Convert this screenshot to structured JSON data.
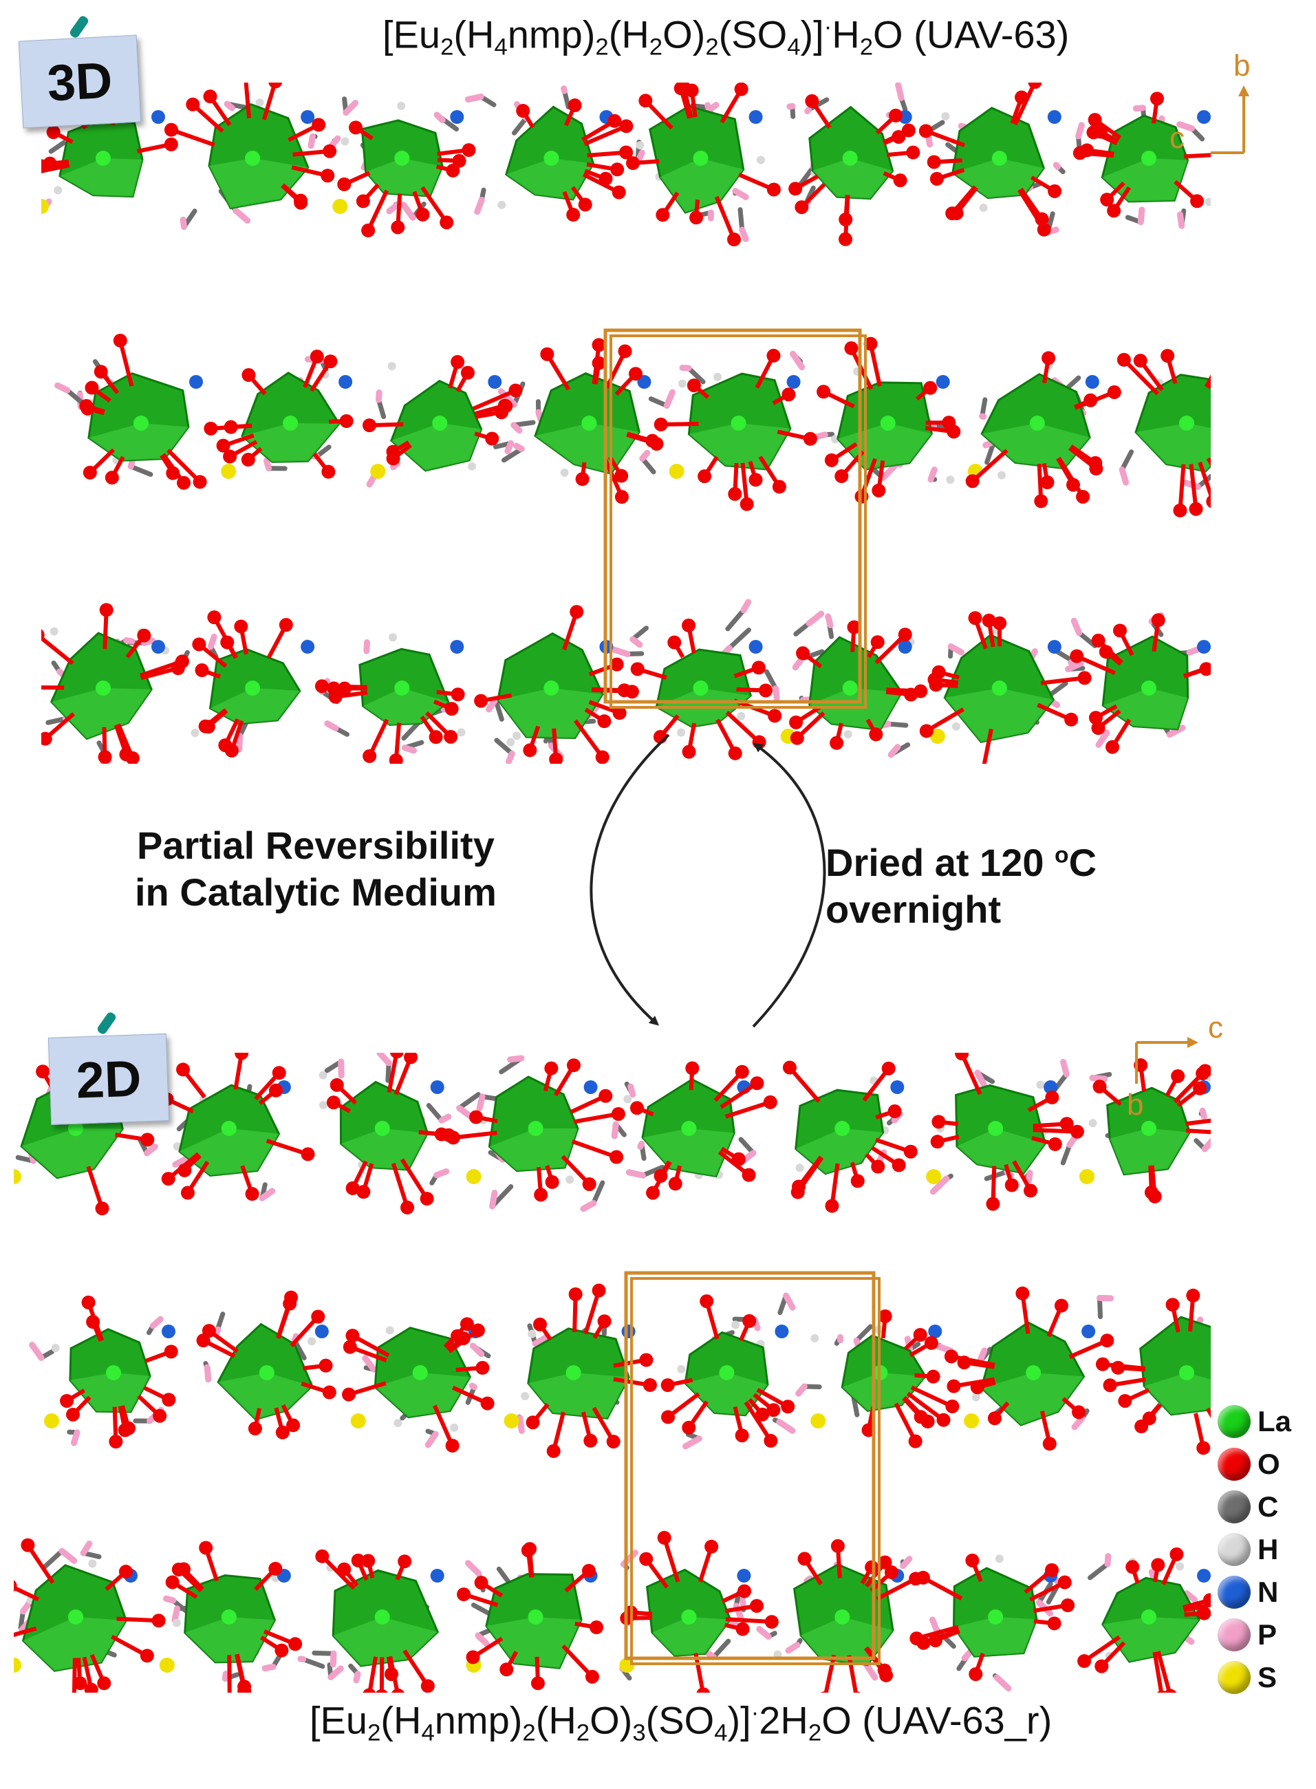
{
  "top": {
    "formula": {
      "a": "[Eu",
      "s1": "2",
      "b": "(H",
      "s2": "4",
      "c": "nmp)",
      "s3": "2",
      "d": "(H",
      "s4": "2",
      "e": "O)",
      "s5": "2",
      "f": "(SO",
      "s6": "4",
      "g": ")]",
      "dot": "·",
      "h": "H",
      "s7": "2",
      "i": "O (UAV-63)"
    },
    "tag": "3D",
    "axes": {
      "horizontal": "c",
      "vertical": "b"
    }
  },
  "bottom": {
    "formula": {
      "a": "[Eu",
      "s1": "2",
      "b": "(H",
      "s2": "4",
      "c": "nmp)",
      "s3": "2",
      "d": "(H",
      "s4": "2",
      "e": "O)",
      "s5": "3",
      "f": "(SO",
      "s6": "4",
      "g": ")]",
      "dot": "·",
      "h": "2H",
      "s7": "2",
      "i": "O (UAV-63_r)"
    },
    "tag": "2D",
    "axes": {
      "horizontal": "c",
      "vertical": "b"
    }
  },
  "transitions": {
    "left_line1": "Partial Reversibility",
    "left_line2": "in Catalytic Medium",
    "right_line1": "Dried at 120 ",
    "right_deg": "o",
    "right_line1_end": "C",
    "right_line2": "overnight"
  },
  "legend": [
    {
      "label": "La",
      "color": "#18d018"
    },
    {
      "label": "O",
      "color": "#ee0000"
    },
    {
      "label": "C",
      "color": "#6e6e6e"
    },
    {
      "label": "H",
      "color": "#d8d8d8"
    },
    {
      "label": "N",
      "color": "#1f5fd6"
    },
    {
      "label": "P",
      "color": "#f2a0c8"
    },
    {
      "label": "S",
      "color": "#f0e000"
    }
  ],
  "colors": {
    "polyhedron": "#1fa81f",
    "polyhedron_light": "#3ccc3c",
    "oxygen": "#ee0000",
    "carbon": "#6e6e6e",
    "hydrogen": "#d8d8d8",
    "nitrogen": "#1f5fd6",
    "phosphorus": "#f2a0c8",
    "sulfur": "#f0e000",
    "cell": "#d08a2a",
    "arrow": "#222222"
  }
}
